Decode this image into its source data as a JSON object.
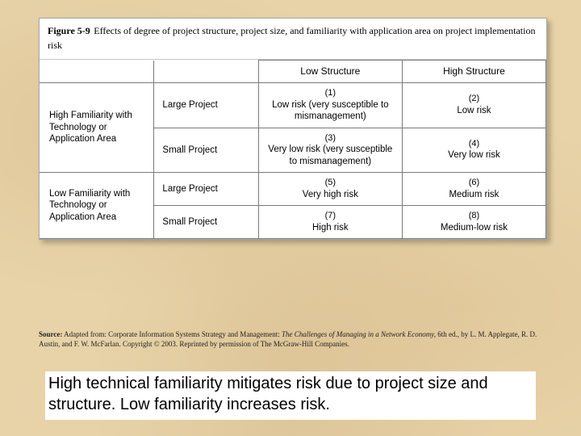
{
  "figure": {
    "label": "Figure 5-9",
    "title": "Effects of degree of project structure, project size, and familiarity with application area on project implementation risk"
  },
  "table": {
    "col_headers": {
      "low": "Low Structure",
      "high": "High Structure"
    },
    "row_groups": [
      {
        "familiarity": "High Familiarity with Technology or Application Area",
        "rows": [
          {
            "project": "Large Project",
            "low": {
              "n": "(1)",
              "text": "Low risk (very susceptible to mismanagement)"
            },
            "high": {
              "n": "(2)",
              "text": "Low risk"
            }
          },
          {
            "project": "Small Project",
            "low": {
              "n": "(3)",
              "text": "Very low risk (very susceptible to mismanagement)"
            },
            "high": {
              "n": "(4)",
              "text": "Very low risk"
            }
          }
        ]
      },
      {
        "familiarity": "Low Familiarity with Technology or Application Area",
        "rows": [
          {
            "project": "Large Project",
            "low": {
              "n": "(5)",
              "text": "Very high risk"
            },
            "high": {
              "n": "(6)",
              "text": "Medium risk"
            }
          },
          {
            "project": "Small Project",
            "low": {
              "n": "(7)",
              "text": "High risk"
            },
            "high": {
              "n": "(8)",
              "text": "Medium-low risk"
            }
          }
        ]
      }
    ]
  },
  "source": {
    "label": "Source:",
    "prefix": "Adapted from: Corporate Information Systems Strategy and Management:",
    "italic": "The Challenges of Managing in a Network Economy,",
    "suffix": "6th ed., by L. M. Applegate, R. D. Austin, and F. W. McFarlan. Copyright © 2003. Reprinted by permission of The McGraw-Hill Companies."
  },
  "caption": "High technical familiarity mitigates risk due to project size and structure. Low familiarity increases risk."
}
